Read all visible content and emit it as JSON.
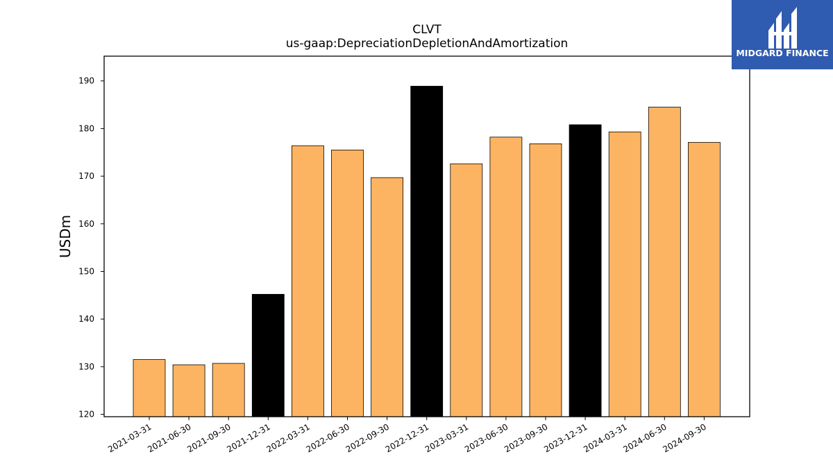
{
  "chart_data": {
    "type": "bar",
    "title": "CLVT",
    "subtitle": "us-gaap:DepreciationDepletionAndAmortization",
    "xlabel": "",
    "ylabel": "USDm",
    "categories": [
      "2021-03-31",
      "2021-06-30",
      "2021-09-30",
      "2021-12-31",
      "2022-03-31",
      "2022-06-30",
      "2022-09-30",
      "2022-12-31",
      "2023-03-31",
      "2023-06-30",
      "2023-09-30",
      "2023-12-31",
      "2024-03-31",
      "2024-06-30",
      "2024-09-30"
    ],
    "values": [
      131.5,
      130.4,
      130.7,
      145.2,
      176.4,
      175.5,
      169.7,
      188.9,
      172.6,
      178.2,
      176.8,
      180.8,
      179.3,
      184.5,
      177.1
    ],
    "highlight": [
      false,
      false,
      false,
      true,
      false,
      false,
      false,
      true,
      false,
      false,
      false,
      true,
      false,
      false,
      false
    ],
    "ylim": [
      119.5,
      195.2
    ],
    "yticks": [
      120,
      130,
      140,
      150,
      160,
      170,
      180,
      190
    ],
    "colors": {
      "bar": "#fdb462",
      "highlight_bar": "#000000",
      "edge": "#000000"
    },
    "grid": false,
    "legend": "none"
  },
  "brand": {
    "name": "MIDGARD FINANCE",
    "bg_color": "#2f5bb0",
    "icon": "midgard-logo-icon"
  }
}
